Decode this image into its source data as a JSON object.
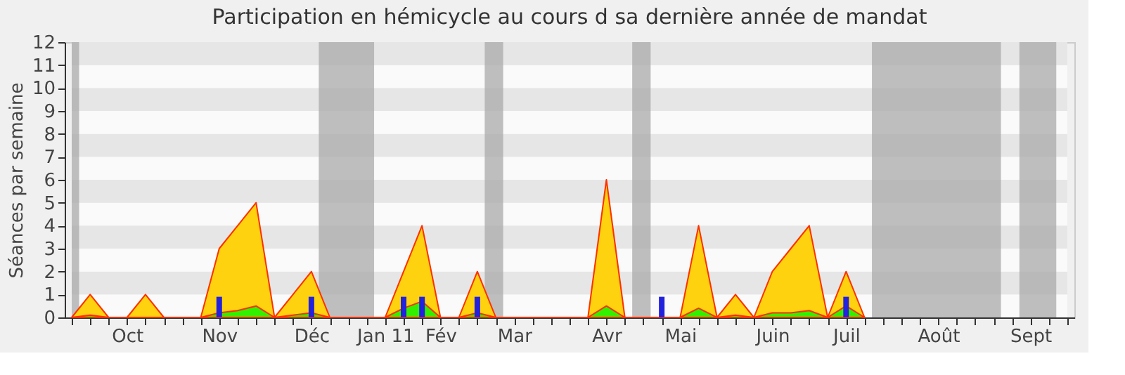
{
  "chart_data": {
    "type": "area",
    "title": "Participation en hémicycle au cours d sa dernière année de mandat",
    "ylabel": "Séances par semaine",
    "categories": [
      null,
      null,
      null,
      "Oct",
      null,
      null,
      null,
      null,
      "Nov",
      null,
      null,
      null,
      null,
      "Déc",
      null,
      null,
      null,
      "Jan 11",
      null,
      null,
      "Fév",
      null,
      null,
      null,
      "Mar",
      null,
      null,
      null,
      null,
      "Avr",
      null,
      null,
      null,
      "Mai",
      null,
      null,
      null,
      null,
      "Juin",
      null,
      null,
      null,
      "Juil",
      null,
      null,
      null,
      null,
      "Août",
      null,
      null,
      null,
      null,
      "Sept",
      null,
      null
    ],
    "series": [
      {
        "color": "#ffd20f",
        "values": [
          0,
          1,
          0,
          0,
          1,
          0,
          0,
          0,
          3,
          4,
          5,
          0,
          1,
          2,
          0,
          0,
          0,
          0,
          2,
          4,
          0,
          0,
          2,
          0,
          0,
          0,
          0,
          0,
          0,
          6,
          0,
          0,
          0,
          0,
          4,
          0,
          1,
          0,
          2,
          3,
          4,
          0,
          2,
          0,
          null,
          null,
          null,
          null,
          null,
          null,
          null,
          null,
          null,
          null,
          null
        ]
      },
      {
        "color": "#33f000",
        "values": [
          0,
          0.1,
          0,
          0,
          0,
          0,
          0,
          0,
          0.2,
          0.3,
          0.5,
          0,
          0.1,
          0.2,
          0,
          0,
          0,
          0,
          0.4,
          0.7,
          0,
          0,
          0.2,
          0,
          0,
          0,
          0,
          0,
          0,
          0.5,
          0,
          0,
          0,
          0,
          0.4,
          0,
          0.1,
          0,
          0.2,
          0.2,
          0.3,
          0,
          0.5,
          0,
          null,
          null,
          null,
          null,
          null,
          null,
          null,
          null,
          null,
          null,
          null
        ]
      },
      {
        "type": "bar",
        "color": "#2222dd",
        "values": [
          null,
          null,
          null,
          null,
          null,
          null,
          null,
          null,
          0.9,
          null,
          null,
          null,
          null,
          0.9,
          null,
          null,
          null,
          null,
          0.9,
          0.9,
          null,
          null,
          0.9,
          null,
          null,
          null,
          null,
          null,
          null,
          null,
          null,
          null,
          0.9,
          null,
          null,
          null,
          null,
          null,
          null,
          null,
          null,
          null,
          0.9,
          null,
          null,
          null,
          null,
          null,
          null,
          null,
          null,
          null,
          null,
          null,
          null
        ]
      }
    ],
    "ylim": [
      0,
      12
    ],
    "yticks": [
      0,
      1,
      2,
      3,
      4,
      5,
      6,
      7,
      8,
      9,
      10,
      11,
      12
    ],
    "grid": false
  }
}
